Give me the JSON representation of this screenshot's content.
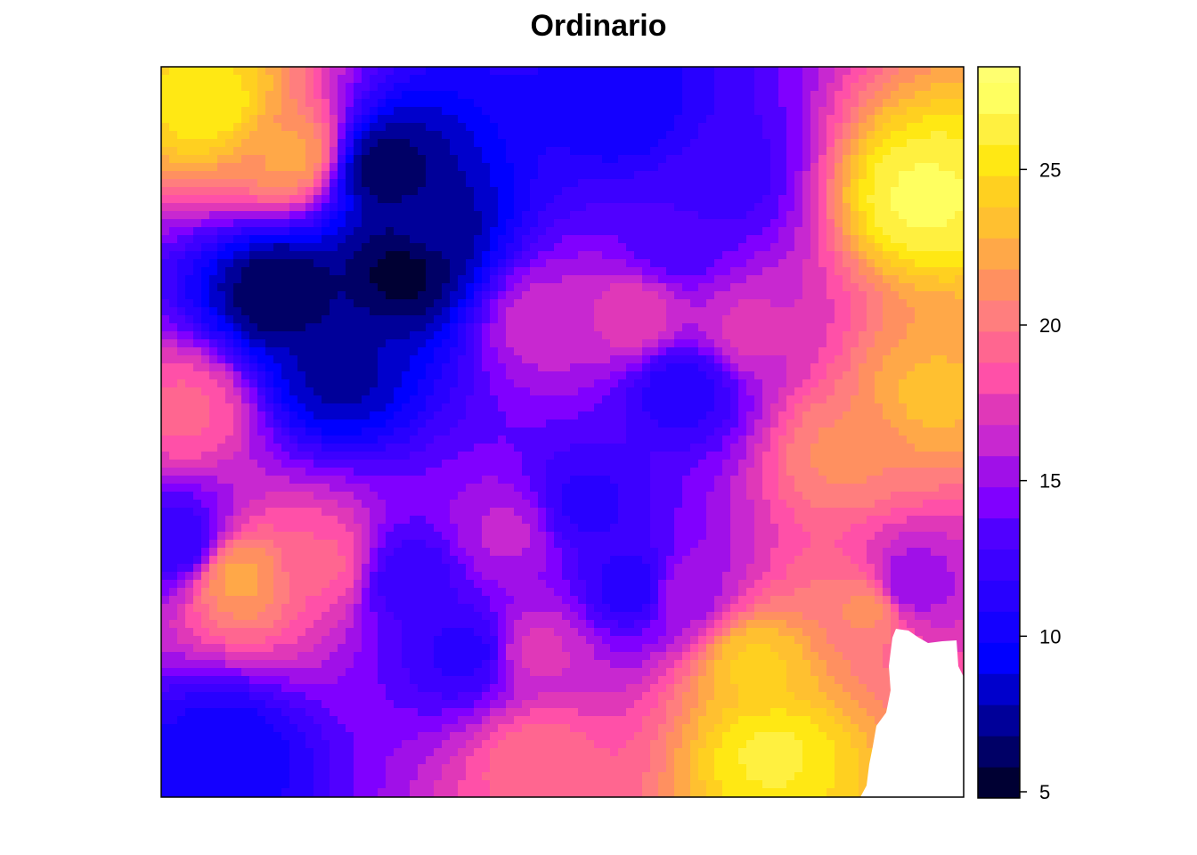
{
  "chart_data": {
    "type": "heatmap",
    "title": "Ordinario",
    "xlabel": "",
    "ylabel": "",
    "colorbar": {
      "breaks": [
        4.8,
        5.8,
        6.8,
        7.8,
        8.8,
        9.8,
        10.8,
        11.8,
        12.8,
        13.8,
        14.8,
        15.8,
        16.8,
        17.8,
        18.8,
        19.8,
        20.8,
        21.8,
        22.8,
        23.8,
        24.8,
        25.8,
        26.8,
        27.8,
        28.3
      ],
      "colors": [
        "#000033",
        "#000066",
        "#000099",
        "#0000CC",
        "#0000FF",
        "#1400FF",
        "#2800FF",
        "#3C00FF",
        "#5000FF",
        "#8000FF",
        "#A010E8",
        "#C828D0",
        "#E038B8",
        "#FF50A8",
        "#FF6690",
        "#FF7E7E",
        "#FF9060",
        "#FFA848",
        "#FFC030",
        "#FFD020",
        "#FFE814",
        "#FFF040",
        "#FFFF60",
        "#FFFF70"
      ],
      "ticks": [
        5,
        10,
        15,
        20,
        25
      ],
      "range": [
        4.8,
        28.3
      ]
    },
    "extent": {
      "x": [
        0,
        1
      ],
      "y": [
        0,
        1
      ]
    },
    "missing_region": "bottom-right corner (white)",
    "field_features": [
      {
        "x": 0.06,
        "y": 0.95,
        "value": 25.5
      },
      {
        "x": 0.16,
        "y": 0.88,
        "value": 22
      },
      {
        "x": 0.3,
        "y": 0.72,
        "value": 5.5
      },
      {
        "x": 0.28,
        "y": 0.86,
        "value": 6.2
      },
      {
        "x": 0.33,
        "y": 0.78,
        "value": 7.0
      },
      {
        "x": 0.15,
        "y": 0.69,
        "value": 5.8
      },
      {
        "x": 0.22,
        "y": 0.58,
        "value": 7.5
      },
      {
        "x": 0.03,
        "y": 0.53,
        "value": 19
      },
      {
        "x": 0.1,
        "y": 0.3,
        "value": 22
      },
      {
        "x": 0.2,
        "y": 0.32,
        "value": 19
      },
      {
        "x": 0.08,
        "y": 0.06,
        "value": 10
      },
      {
        "x": 0.02,
        "y": 0.35,
        "value": 12
      },
      {
        "x": 0.48,
        "y": 0.65,
        "value": 16.5
      },
      {
        "x": 0.58,
        "y": 0.94,
        "value": 10
      },
      {
        "x": 0.69,
        "y": 0.85,
        "value": 12
      },
      {
        "x": 0.95,
        "y": 0.82,
        "value": 27
      },
      {
        "x": 0.96,
        "y": 0.55,
        "value": 23
      },
      {
        "x": 0.88,
        "y": 0.26,
        "value": 21
      },
      {
        "x": 0.74,
        "y": 0.18,
        "value": 24
      },
      {
        "x": 0.76,
        "y": 0.06,
        "value": 26
      },
      {
        "x": 0.47,
        "y": 0.05,
        "value": 19.5
      },
      {
        "x": 0.53,
        "y": 0.4,
        "value": 11.5
      },
      {
        "x": 0.31,
        "y": 0.3,
        "value": 12
      },
      {
        "x": 0.38,
        "y": 0.2,
        "value": 11.5
      },
      {
        "x": 0.65,
        "y": 0.56,
        "value": 11
      },
      {
        "x": 0.59,
        "y": 0.29,
        "value": 11
      },
      {
        "x": 0.73,
        "y": 0.64,
        "value": 17
      },
      {
        "x": 0.59,
        "y": 0.66,
        "value": 17.5
      },
      {
        "x": 0.43,
        "y": 0.36,
        "value": 16
      },
      {
        "x": 0.93,
        "y": 0.29,
        "value": 15
      },
      {
        "x": 0.85,
        "y": 0.47,
        "value": 21
      },
      {
        "x": 0.47,
        "y": 0.2,
        "value": 17
      },
      {
        "x": 0.64,
        "y": 0.76,
        "value": 13
      },
      {
        "x": 0.65,
        "y": 0.28,
        "value": 15.5
      }
    ]
  }
}
